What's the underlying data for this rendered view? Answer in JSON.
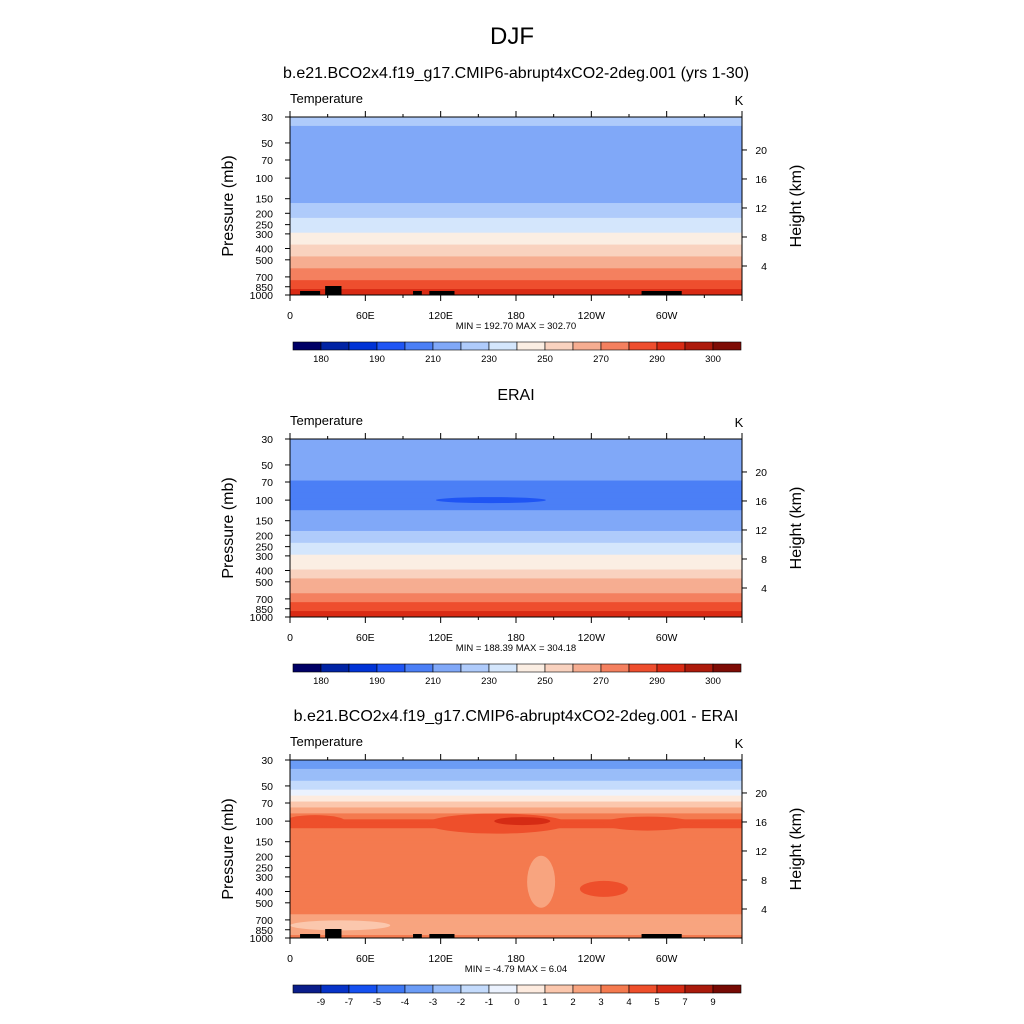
{
  "figure": {
    "title": "DJF"
  },
  "colors": {
    "temp_bands": [
      "#000066",
      "#0023a4",
      "#0033d6",
      "#1f55f4",
      "#4b7ff6",
      "#80a8f8",
      "#afcbfb",
      "#d4e6fc",
      "#fbeee3",
      "#f9d2bf",
      "#f6ad91",
      "#f4805f",
      "#ee4e2e",
      "#d92b14",
      "#ad1a0b",
      "#7e0c05"
    ],
    "diff_bands": [
      "#0a1d8a",
      "#0733c8",
      "#1550f0",
      "#3e78f4",
      "#6b9cf6",
      "#99bdf9",
      "#c4dbfc",
      "#ebf2fe",
      "#fdebdf",
      "#fbc7ad",
      "#f8a47f",
      "#f47a4f",
      "#ee4f2b",
      "#d52b14",
      "#a91a0b",
      "#760a04"
    ],
    "land": "#000000"
  },
  "chart_data": [
    {
      "type": "heatmap",
      "title": "b.e21.BCO2x4.f19_g17.CMIP6-abrupt4xCO2-2deg.001 (yrs 1-30)",
      "left_label": "Temperature",
      "units": "K",
      "ylabel": "Pressure (mb)",
      "ylabel_right": "Height (km)",
      "y_ticks": [
        "30",
        "50",
        "70",
        "100",
        "150",
        "200",
        "250",
        "300",
        "400",
        "500",
        "700",
        "850",
        "1000"
      ],
      "y_values": [
        30,
        50,
        70,
        100,
        150,
        200,
        250,
        300,
        400,
        500,
        700,
        850,
        1000
      ],
      "y_right_ticks": [
        "20",
        "16",
        "12",
        "8",
        "4"
      ],
      "x_ticks": [
        "0",
        "60E",
        "120E",
        "180",
        "120W",
        "60W"
      ],
      "x_values": [
        0,
        60,
        120,
        180,
        240,
        300
      ],
      "stats": "MIN = 192.70  MAX = 302.70",
      "colorbar_labels": [
        "180",
        "190",
        "210",
        "230",
        "250",
        "270",
        "290",
        "300"
      ],
      "colorbar_levels": [
        175,
        180,
        185,
        190,
        200,
        210,
        220,
        230,
        240,
        250,
        260,
        270,
        280,
        290,
        295,
        300
      ],
      "profile": {
        "pressure": [
          30,
          50,
          70,
          100,
          150,
          200,
          250,
          300,
          400,
          500,
          700,
          850,
          1000
        ],
        "temperature": [
          212,
          205,
          201,
          201,
          208,
          216,
          224,
          231,
          243,
          253,
          268,
          279,
          288
        ]
      },
      "min": 192.7,
      "max": 302.7
    },
    {
      "type": "heatmap",
      "title": "ERAI",
      "left_label": "Temperature",
      "units": "K",
      "ylabel": "Pressure (mb)",
      "ylabel_right": "Height (km)",
      "y_ticks": [
        "30",
        "50",
        "70",
        "100",
        "150",
        "200",
        "250",
        "300",
        "400",
        "500",
        "700",
        "850",
        "1000"
      ],
      "y_values": [
        30,
        50,
        70,
        100,
        150,
        200,
        250,
        300,
        400,
        500,
        700,
        850,
        1000
      ],
      "y_right_ticks": [
        "20",
        "16",
        "12",
        "8",
        "4"
      ],
      "x_ticks": [
        "0",
        "60E",
        "120E",
        "180",
        "120W",
        "60W"
      ],
      "x_values": [
        0,
        60,
        120,
        180,
        240,
        300
      ],
      "stats": "MIN = 188.39  MAX = 304.18",
      "colorbar_labels": [
        "180",
        "190",
        "210",
        "230",
        "250",
        "270",
        "290",
        "300"
      ],
      "colorbar_levels": [
        175,
        180,
        185,
        190,
        200,
        210,
        220,
        230,
        240,
        250,
        260,
        270,
        280,
        290,
        295,
        300
      ],
      "profile": {
        "pressure": [
          30,
          50,
          70,
          100,
          150,
          200,
          250,
          300,
          400,
          500,
          700,
          850,
          1000
        ],
        "temperature": [
          210,
          206,
          200,
          197,
          204,
          214,
          222,
          230,
          242,
          252,
          266,
          277,
          287
        ]
      },
      "min": 188.39,
      "max": 304.18
    },
    {
      "type": "heatmap",
      "title": "b.e21.BCO2x4.f19_g17.CMIP6-abrupt4xCO2-2deg.001 - ERAI",
      "left_label": "Temperature",
      "units": "K",
      "ylabel": "Pressure (mb)",
      "ylabel_right": "Height (km)",
      "y_ticks": [
        "30",
        "50",
        "70",
        "100",
        "150",
        "200",
        "250",
        "300",
        "400",
        "500",
        "700",
        "850",
        "1000"
      ],
      "y_values": [
        30,
        50,
        70,
        100,
        150,
        200,
        250,
        300,
        400,
        500,
        700,
        850,
        1000
      ],
      "y_right_ticks": [
        "20",
        "16",
        "12",
        "8",
        "4"
      ],
      "x_ticks": [
        "0",
        "60E",
        "120E",
        "180",
        "120W",
        "60W"
      ],
      "x_values": [
        0,
        60,
        120,
        180,
        240,
        300
      ],
      "stats": "MIN = -4.79  MAX =  6.04",
      "colorbar_labels": [
        "-9",
        "-7",
        "-5",
        "-4",
        "-3",
        "-2",
        "-1",
        "0",
        "1",
        "2",
        "3",
        "4",
        "5",
        "7",
        "9"
      ],
      "colorbar_levels": [
        -9,
        -7,
        -5,
        -4,
        -3,
        -2,
        -1,
        0,
        1,
        2,
        3,
        4,
        5,
        7,
        9
      ],
      "profile": {
        "pressure": [
          30,
          50,
          70,
          100,
          150,
          200,
          250,
          300,
          400,
          500,
          700,
          850,
          1000
        ],
        "difference": [
          -3.5,
          -1.5,
          1.5,
          4.2,
          3.5,
          3.3,
          3.3,
          3.3,
          3.4,
          3.3,
          2.8,
          2.2,
          3.2
        ]
      },
      "min": -4.79,
      "max": 6.04
    }
  ]
}
